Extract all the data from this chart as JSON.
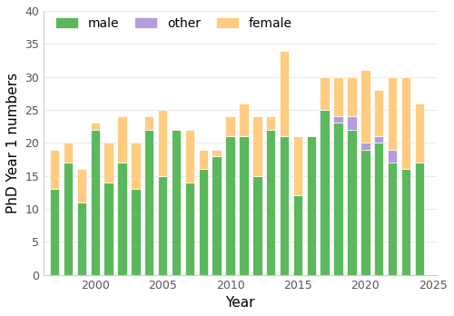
{
  "years": [
    1997,
    1998,
    1999,
    2000,
    2001,
    2002,
    2003,
    2004,
    2005,
    2006,
    2007,
    2008,
    2009,
    2010,
    2011,
    2012,
    2013,
    2014,
    2015,
    2016,
    2017,
    2018,
    2019,
    2020,
    2021,
    2022,
    2023,
    2024
  ],
  "male": [
    13,
    17,
    11,
    22,
    14,
    17,
    13,
    22,
    15,
    22,
    14,
    16,
    18,
    21,
    21,
    15,
    22,
    21,
    12,
    21,
    25,
    23,
    22,
    19,
    20,
    17,
    16,
    17
  ],
  "other": [
    0,
    0,
    0,
    0,
    0,
    0,
    0,
    0,
    0,
    0,
    0,
    0,
    0,
    0,
    0,
    0,
    0,
    0,
    0,
    0,
    0,
    1,
    2,
    1,
    1,
    2,
    0,
    0
  ],
  "female": [
    6,
    3,
    5,
    1,
    6,
    7,
    7,
    2,
    10,
    0,
    8,
    3,
    1,
    3,
    5,
    9,
    2,
    13,
    9,
    0,
    5,
    6,
    6,
    11,
    7,
    11,
    14,
    9
  ],
  "male_color": "#5cb85c",
  "other_color": "#b39ddb",
  "female_color": "#ffcc80",
  "ylabel": "PhD Year 1 numbers",
  "xlabel": "Year",
  "ylim": [
    0,
    40
  ],
  "yticks": [
    0,
    5,
    10,
    15,
    20,
    25,
    30,
    35,
    40
  ],
  "background_color": "#ffffff",
  "legend_labels": [
    "male",
    "other",
    "female"
  ]
}
